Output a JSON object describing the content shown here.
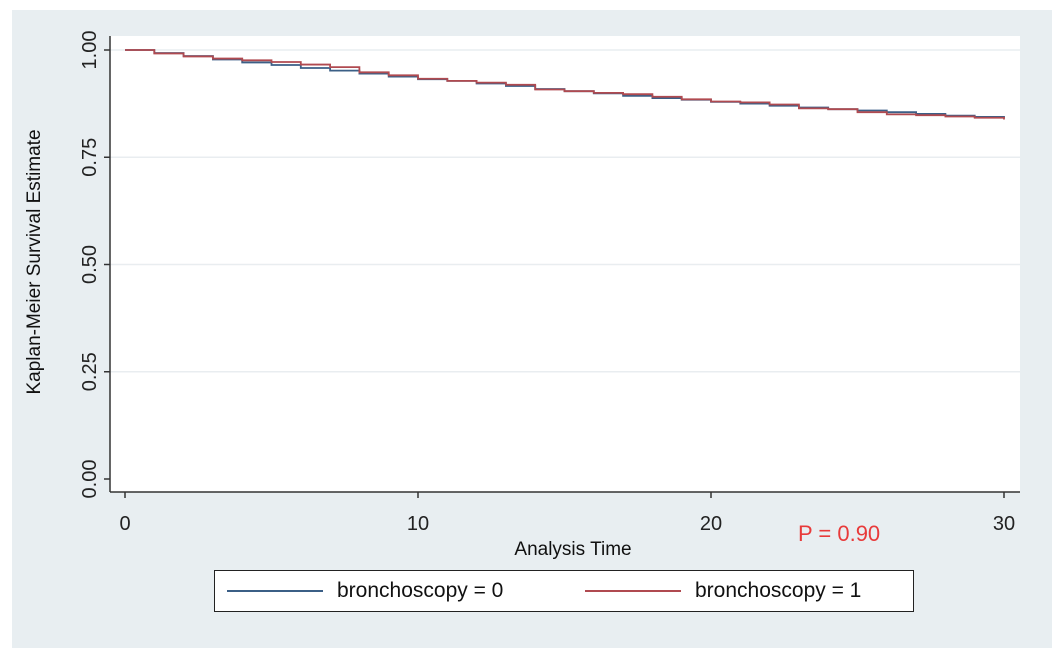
{
  "chart_data": {
    "type": "line",
    "title": "",
    "xlabel": "Analysis Time",
    "ylabel": "Kaplan-Meier Survival Estimate",
    "xlim": [
      0,
      30
    ],
    "ylim": [
      0,
      1
    ],
    "x_ticks": [
      "0",
      "10",
      "20",
      "30"
    ],
    "y_ticks": [
      "0.00",
      "0.25",
      "0.50",
      "0.75",
      "1.00"
    ],
    "grid": "horizontal",
    "legend_position": "bottom",
    "series": [
      {
        "name": "bronchoscopy = 0",
        "color": "#3b5f86",
        "x": [
          0,
          1,
          2,
          3,
          4,
          5,
          6,
          7,
          8,
          9,
          10,
          11,
          12,
          13,
          14,
          15,
          16,
          17,
          18,
          19,
          20,
          21,
          22,
          23,
          24,
          25,
          26,
          27,
          28,
          29,
          30
        ],
        "y": [
          1.0,
          0.993,
          0.986,
          0.978,
          0.971,
          0.965,
          0.958,
          0.952,
          0.945,
          0.938,
          0.932,
          0.928,
          0.922,
          0.916,
          0.909,
          0.904,
          0.899,
          0.893,
          0.888,
          0.884,
          0.879,
          0.875,
          0.87,
          0.866,
          0.862,
          0.859,
          0.855,
          0.851,
          0.847,
          0.844,
          0.841
        ]
      },
      {
        "name": "bronchoscopy = 1",
        "color": "#b04a50",
        "x": [
          0,
          1,
          2,
          3,
          4,
          5,
          6,
          7,
          8,
          9,
          10,
          11,
          12,
          13,
          14,
          15,
          16,
          17,
          18,
          19,
          20,
          21,
          22,
          23,
          24,
          25,
          26,
          27,
          28,
          29,
          30
        ],
        "y": [
          1.0,
          0.992,
          0.985,
          0.98,
          0.976,
          0.972,
          0.966,
          0.96,
          0.948,
          0.941,
          0.933,
          0.928,
          0.924,
          0.919,
          0.908,
          0.904,
          0.9,
          0.897,
          0.891,
          0.885,
          0.88,
          0.878,
          0.873,
          0.864,
          0.862,
          0.855,
          0.85,
          0.848,
          0.845,
          0.842,
          0.838
        ]
      }
    ],
    "annotations": [
      {
        "text": "P = 0.90",
        "color": "#e83a3a"
      }
    ]
  }
}
